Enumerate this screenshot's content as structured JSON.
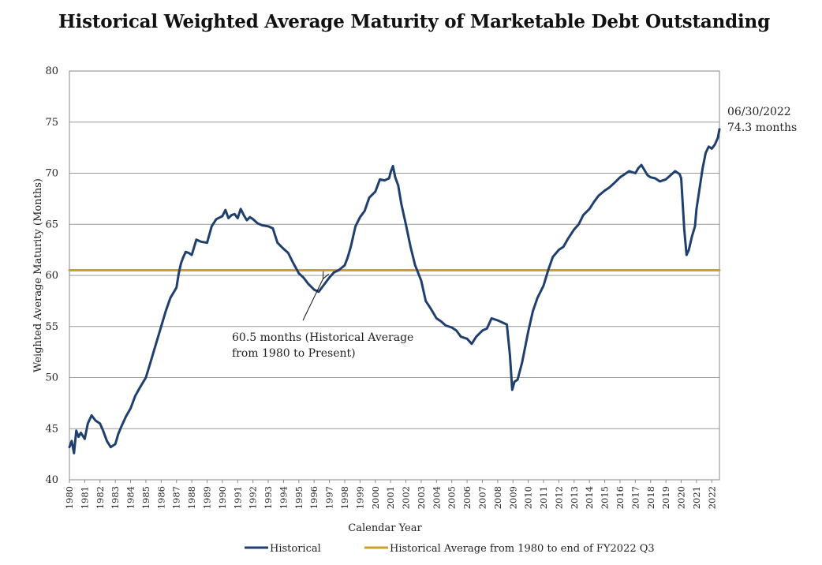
{
  "chart_data": {
    "type": "line",
    "title": "Historical Weighted Average Maturity of Marketable Debt Outstanding",
    "xlabel": "Calendar Year",
    "ylabel": "Weighted Average Maturity (Months)",
    "xlim": [
      1980,
      2022.5
    ],
    "ylim": [
      40,
      80
    ],
    "y_ticks": [
      40,
      45,
      50,
      55,
      60,
      65,
      70,
      75,
      80
    ],
    "x_ticks": [
      "1980",
      "1981",
      "1982",
      "1983",
      "1984",
      "1985",
      "1986",
      "1987",
      "1988",
      "1989",
      "1990",
      "1991",
      "1992",
      "1993",
      "1994",
      "1995",
      "1996",
      "1997",
      "1998",
      "1999",
      "2000",
      "2001",
      "2002",
      "2003",
      "2004",
      "2005",
      "2006",
      "2007",
      "2008",
      "2009",
      "2010",
      "2011",
      "2012",
      "2013",
      "2014",
      "2015",
      "2016",
      "2017",
      "2018",
      "2019",
      "2020",
      "2021",
      "2022"
    ],
    "grid": true,
    "legend_position": "bottom",
    "series": [
      {
        "name": "Historical",
        "color": "#1f3f6e",
        "x": [
          1980.0,
          1980.15,
          1980.3,
          1980.45,
          1980.6,
          1980.75,
          1981.0,
          1981.2,
          1981.45,
          1981.7,
          1982.0,
          1982.2,
          1982.45,
          1982.7,
          1983.0,
          1983.2,
          1983.45,
          1983.7,
          1984.0,
          1984.3,
          1984.6,
          1985.0,
          1985.3,
          1985.6,
          1986.0,
          1986.3,
          1986.6,
          1987.0,
          1987.15,
          1987.3,
          1987.45,
          1987.6,
          1987.8,
          1988.0,
          1988.3,
          1988.6,
          1989.0,
          1989.3,
          1989.6,
          1990.0,
          1990.2,
          1990.4,
          1990.6,
          1990.8,
          1991.0,
          1991.2,
          1991.4,
          1991.6,
          1991.8,
          1992.0,
          1992.3,
          1992.6,
          1993.0,
          1993.3,
          1993.6,
          1994.0,
          1994.3,
          1994.6,
          1995.0,
          1995.3,
          1995.6,
          1996.0,
          1996.3,
          1996.6,
          1997.0,
          1997.3,
          1997.6,
          1998.0,
          1998.2,
          1998.4,
          1998.7,
          1999.0,
          1999.3,
          1999.6,
          2000.0,
          2000.3,
          2000.6,
          2000.9,
          2001.0,
          2001.15,
          2001.3,
          2001.5,
          2001.7,
          2002.0,
          2002.3,
          2002.6,
          2003.0,
          2003.3,
          2003.6,
          2004.0,
          2004.3,
          2004.6,
          2005.0,
          2005.3,
          2005.6,
          2006.0,
          2006.3,
          2006.6,
          2007.0,
          2007.3,
          2007.6,
          2008.0,
          2008.3,
          2008.6,
          2008.8,
          2008.95,
          2009.1,
          2009.3,
          2009.6,
          2010.0,
          2010.3,
          2010.6,
          2011.0,
          2011.3,
          2011.6,
          2012.0,
          2012.3,
          2012.6,
          2013.0,
          2013.3,
          2013.6,
          2014.0,
          2014.3,
          2014.6,
          2015.0,
          2015.3,
          2015.6,
          2016.0,
          2016.3,
          2016.6,
          2017.0,
          2017.2,
          2017.4,
          2017.6,
          2017.8,
          2018.0,
          2018.3,
          2018.6,
          2019.0,
          2019.3,
          2019.6,
          2019.9,
          2020.0,
          2020.2,
          2020.35,
          2020.5,
          2020.7,
          2020.9,
          2021.0,
          2021.2,
          2021.4,
          2021.6,
          2021.8,
          2022.0,
          2022.2,
          2022.4,
          2022.5
        ],
        "values": [
          43.2,
          43.8,
          42.6,
          44.8,
          44.2,
          44.6,
          44.0,
          45.5,
          46.3,
          45.8,
          45.5,
          44.8,
          43.8,
          43.2,
          43.5,
          44.5,
          45.4,
          46.2,
          47.0,
          48.2,
          49.0,
          50.0,
          51.5,
          53.0,
          55.0,
          56.5,
          57.8,
          58.8,
          60.2,
          61.2,
          61.8,
          62.3,
          62.2,
          62.0,
          63.5,
          63.3,
          63.2,
          64.8,
          65.5,
          65.8,
          66.4,
          65.6,
          65.9,
          66.0,
          65.6,
          66.5,
          65.9,
          65.4,
          65.7,
          65.5,
          65.1,
          64.9,
          64.8,
          64.6,
          63.2,
          62.6,
          62.2,
          61.3,
          60.2,
          59.8,
          59.2,
          58.6,
          58.4,
          59.0,
          59.8,
          60.3,
          60.5,
          61.0,
          61.8,
          62.8,
          64.8,
          65.7,
          66.3,
          67.6,
          68.2,
          69.4,
          69.3,
          69.5,
          70.1,
          70.7,
          69.6,
          68.8,
          67.0,
          65.0,
          62.8,
          61.0,
          59.5,
          57.5,
          56.8,
          55.8,
          55.5,
          55.1,
          54.9,
          54.6,
          54.0,
          53.8,
          53.3,
          54.0,
          54.6,
          54.8,
          55.8,
          55.6,
          55.4,
          55.2,
          52.2,
          48.8,
          49.6,
          49.8,
          51.5,
          54.5,
          56.5,
          57.8,
          59.0,
          60.5,
          61.8,
          62.5,
          62.8,
          63.6,
          64.5,
          65.0,
          65.9,
          66.5,
          67.2,
          67.8,
          68.3,
          68.6,
          69.0,
          69.6,
          69.9,
          70.2,
          70.0,
          70.5,
          70.8,
          70.3,
          69.8,
          69.6,
          69.5,
          69.2,
          69.4,
          69.8,
          70.2,
          69.9,
          69.5,
          64.5,
          62.0,
          62.5,
          63.8,
          64.8,
          66.5,
          68.5,
          70.5,
          72.0,
          72.6,
          72.4,
          72.8,
          73.5,
          74.3
        ]
      },
      {
        "name": "Historical Average from 1980 to end of FY2022 Q3",
        "color": "#c9a227",
        "x": [
          1980.0,
          2022.5
        ],
        "values": [
          60.5,
          60.5
        ]
      }
    ],
    "annotations": [
      {
        "text_lines": [
          "60.5 months (Historical Average",
          "from 1980 to Present)"
        ],
        "target": [
          1996.5,
          60.5
        ]
      },
      {
        "text_lines": [
          "06/30/2022",
          "74.3 months"
        ],
        "target": [
          2022.5,
          74.3
        ]
      }
    ]
  }
}
